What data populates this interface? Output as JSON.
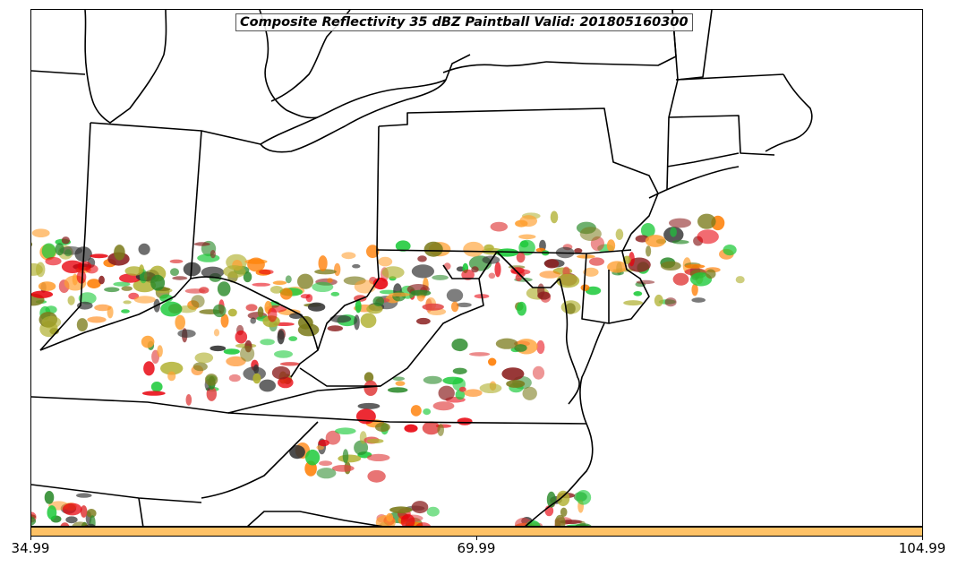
{
  "title": "Composite Reflectivity 35 dBZ Paintball Valid: 201805160300",
  "colorbar": {
    "ticks": [
      "34.99",
      "69.99",
      "104.99"
    ],
    "min": 34.99,
    "max": 104.99,
    "color": "#ffc266"
  },
  "member_colors": [
    "#e8000b",
    "#ff7c00",
    "#1ac938",
    "#8b2020",
    "#333333",
    "#7a7a1a",
    "#ff9f30",
    "#b0b030",
    "#2a8a2a",
    "#e04040"
  ]
}
